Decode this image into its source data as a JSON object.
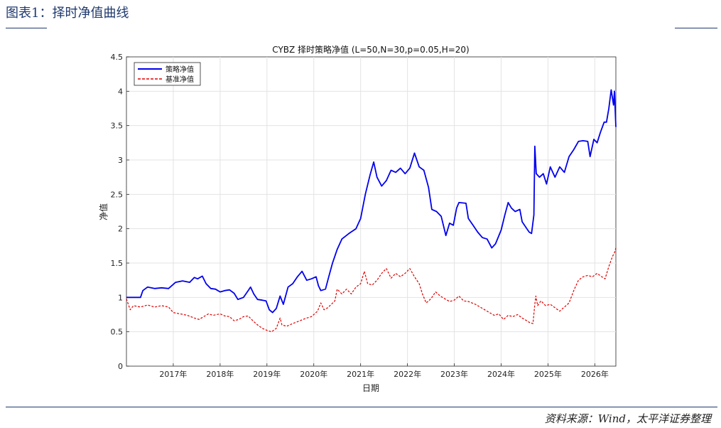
{
  "figure": {
    "title": "图表1：择时净值曲线",
    "source": "资料来源：Wind，太平洋证券整理"
  },
  "colors": {
    "strategy": "#0000ee",
    "benchmark": "#e00000",
    "header_rule": "#1f3a6e"
  },
  "chart_data": {
    "type": "line",
    "title": "CYBZ 择时策略净值 (L=50,N=30,p=0.05,H=20)",
    "xlabel": "日期",
    "ylabel": "净值",
    "xlim": [
      2016.0,
      2026.45
    ],
    "ylim": [
      0,
      4.5
    ],
    "yticks": [
      0,
      0.5,
      1,
      1.5,
      2,
      2.5,
      3,
      3.5,
      4,
      4.5
    ],
    "ytick_labels": [
      "0",
      "0.5",
      "1",
      "1.5",
      "2",
      "2.5",
      "3",
      "3.5",
      "4",
      "4.5"
    ],
    "xticks": [
      2017,
      2018,
      2019,
      2020,
      2021,
      2022,
      2023,
      2024,
      2025,
      2026
    ],
    "xtick_labels": [
      "2017年",
      "2018年",
      "2019年",
      "2020年",
      "2021年",
      "2022年",
      "2023年",
      "2024年",
      "2025年",
      "2026年"
    ],
    "grid": true,
    "legend_position": "top-left",
    "series": [
      {
        "name": "策略净值",
        "style": "solid",
        "points": [
          [
            2016.0,
            1.0
          ],
          [
            2016.3,
            1.0
          ],
          [
            2016.35,
            1.1
          ],
          [
            2016.45,
            1.15
          ],
          [
            2016.6,
            1.13
          ],
          [
            2016.75,
            1.14
          ],
          [
            2016.9,
            1.13
          ],
          [
            2017.05,
            1.22
          ],
          [
            2017.2,
            1.24
          ],
          [
            2017.35,
            1.22
          ],
          [
            2017.45,
            1.29
          ],
          [
            2017.52,
            1.27
          ],
          [
            2017.62,
            1.31
          ],
          [
            2017.7,
            1.2
          ],
          [
            2017.8,
            1.13
          ],
          [
            2017.9,
            1.12
          ],
          [
            2018.0,
            1.08
          ],
          [
            2018.1,
            1.1
          ],
          [
            2018.2,
            1.11
          ],
          [
            2018.3,
            1.06
          ],
          [
            2018.38,
            0.97
          ],
          [
            2018.5,
            1.0
          ],
          [
            2018.6,
            1.1
          ],
          [
            2018.65,
            1.15
          ],
          [
            2018.72,
            1.05
          ],
          [
            2018.8,
            0.97
          ],
          [
            2018.9,
            0.96
          ],
          [
            2018.98,
            0.95
          ],
          [
            2019.05,
            0.82
          ],
          [
            2019.12,
            0.78
          ],
          [
            2019.2,
            0.84
          ],
          [
            2019.28,
            1.02
          ],
          [
            2019.35,
            0.9
          ],
          [
            2019.45,
            1.15
          ],
          [
            2019.55,
            1.2
          ],
          [
            2019.65,
            1.3
          ],
          [
            2019.75,
            1.38
          ],
          [
            2019.85,
            1.25
          ],
          [
            2019.95,
            1.27
          ],
          [
            2020.05,
            1.3
          ],
          [
            2020.1,
            1.17
          ],
          [
            2020.15,
            1.1
          ],
          [
            2020.25,
            1.12
          ],
          [
            2020.32,
            1.3
          ],
          [
            2020.4,
            1.5
          ],
          [
            2020.5,
            1.7
          ],
          [
            2020.6,
            1.85
          ],
          [
            2020.75,
            1.93
          ],
          [
            2020.9,
            2.0
          ],
          [
            2021.0,
            2.15
          ],
          [
            2021.1,
            2.5
          ],
          [
            2021.2,
            2.78
          ],
          [
            2021.28,
            2.97
          ],
          [
            2021.35,
            2.75
          ],
          [
            2021.45,
            2.62
          ],
          [
            2021.55,
            2.7
          ],
          [
            2021.65,
            2.85
          ],
          [
            2021.75,
            2.82
          ],
          [
            2021.85,
            2.88
          ],
          [
            2021.95,
            2.8
          ],
          [
            2022.05,
            2.88
          ],
          [
            2022.15,
            3.1
          ],
          [
            2022.25,
            2.9
          ],
          [
            2022.35,
            2.85
          ],
          [
            2022.45,
            2.6
          ],
          [
            2022.52,
            2.28
          ],
          [
            2022.62,
            2.25
          ],
          [
            2022.72,
            2.18
          ],
          [
            2022.82,
            1.9
          ],
          [
            2022.9,
            2.08
          ],
          [
            2022.98,
            2.05
          ],
          [
            2023.05,
            2.3
          ],
          [
            2023.1,
            2.38
          ],
          [
            2023.25,
            2.37
          ],
          [
            2023.3,
            2.15
          ],
          [
            2023.4,
            2.05
          ],
          [
            2023.5,
            1.95
          ],
          [
            2023.6,
            1.87
          ],
          [
            2023.7,
            1.85
          ],
          [
            2023.8,
            1.72
          ],
          [
            2023.88,
            1.78
          ],
          [
            2024.0,
            1.98
          ],
          [
            2024.08,
            2.2
          ],
          [
            2024.15,
            2.38
          ],
          [
            2024.22,
            2.3
          ],
          [
            2024.3,
            2.25
          ],
          [
            2024.4,
            2.28
          ],
          [
            2024.45,
            2.1
          ],
          [
            2024.55,
            2.0
          ],
          [
            2024.6,
            1.95
          ],
          [
            2024.65,
            1.93
          ],
          [
            2024.7,
            2.2
          ],
          [
            2024.72,
            3.2
          ],
          [
            2024.75,
            2.8
          ],
          [
            2024.82,
            2.75
          ],
          [
            2024.9,
            2.8
          ],
          [
            2024.97,
            2.65
          ],
          [
            2025.05,
            2.9
          ],
          [
            2025.15,
            2.75
          ],
          [
            2025.25,
            2.9
          ],
          [
            2025.35,
            2.82
          ],
          [
            2025.45,
            3.05
          ],
          [
            2025.55,
            3.15
          ],
          [
            2025.65,
            3.27
          ],
          [
            2025.75,
            3.28
          ],
          [
            2025.85,
            3.27
          ],
          [
            2025.9,
            3.05
          ],
          [
            2025.98,
            3.3
          ],
          [
            2026.05,
            3.25
          ],
          [
            2026.12,
            3.4
          ],
          [
            2026.2,
            3.55
          ],
          [
            2026.25,
            3.55
          ],
          [
            2026.3,
            3.75
          ],
          [
            2026.35,
            4.02
          ],
          [
            2026.4,
            3.8
          ],
          [
            2026.42,
            4.0
          ],
          [
            2026.45,
            3.48
          ]
        ]
      },
      {
        "name": "基准净值",
        "style": "dashed",
        "points": [
          [
            2016.0,
            0.98
          ],
          [
            2016.08,
            0.82
          ],
          [
            2016.15,
            0.88
          ],
          [
            2016.3,
            0.86
          ],
          [
            2016.45,
            0.89
          ],
          [
            2016.6,
            0.86
          ],
          [
            2016.75,
            0.88
          ],
          [
            2016.9,
            0.86
          ],
          [
            2017.0,
            0.78
          ],
          [
            2017.15,
            0.76
          ],
          [
            2017.3,
            0.74
          ],
          [
            2017.45,
            0.7
          ],
          [
            2017.55,
            0.68
          ],
          [
            2017.65,
            0.72
          ],
          [
            2017.75,
            0.76
          ],
          [
            2017.85,
            0.74
          ],
          [
            2018.0,
            0.76
          ],
          [
            2018.1,
            0.73
          ],
          [
            2018.2,
            0.72
          ],
          [
            2018.3,
            0.66
          ],
          [
            2018.4,
            0.68
          ],
          [
            2018.5,
            0.72
          ],
          [
            2018.6,
            0.73
          ],
          [
            2018.7,
            0.66
          ],
          [
            2018.8,
            0.6
          ],
          [
            2018.9,
            0.55
          ],
          [
            2019.0,
            0.52
          ],
          [
            2019.1,
            0.5
          ],
          [
            2019.2,
            0.55
          ],
          [
            2019.28,
            0.7
          ],
          [
            2019.32,
            0.6
          ],
          [
            2019.42,
            0.58
          ],
          [
            2019.55,
            0.62
          ],
          [
            2019.7,
            0.66
          ],
          [
            2019.85,
            0.7
          ],
          [
            2019.95,
            0.72
          ],
          [
            2020.08,
            0.8
          ],
          [
            2020.15,
            0.92
          ],
          [
            2020.22,
            0.82
          ],
          [
            2020.3,
            0.85
          ],
          [
            2020.45,
            0.95
          ],
          [
            2020.5,
            1.12
          ],
          [
            2020.6,
            1.05
          ],
          [
            2020.7,
            1.12
          ],
          [
            2020.8,
            1.05
          ],
          [
            2020.9,
            1.15
          ],
          [
            2021.0,
            1.2
          ],
          [
            2021.08,
            1.38
          ],
          [
            2021.15,
            1.2
          ],
          [
            2021.25,
            1.18
          ],
          [
            2021.35,
            1.25
          ],
          [
            2021.45,
            1.35
          ],
          [
            2021.55,
            1.42
          ],
          [
            2021.65,
            1.28
          ],
          [
            2021.75,
            1.35
          ],
          [
            2021.85,
            1.3
          ],
          [
            2021.95,
            1.35
          ],
          [
            2022.05,
            1.42
          ],
          [
            2022.15,
            1.3
          ],
          [
            2022.25,
            1.2
          ],
          [
            2022.32,
            1.05
          ],
          [
            2022.4,
            0.92
          ],
          [
            2022.5,
            0.98
          ],
          [
            2022.6,
            1.08
          ],
          [
            2022.7,
            1.02
          ],
          [
            2022.8,
            0.98
          ],
          [
            2022.9,
            0.94
          ],
          [
            2023.0,
            0.96
          ],
          [
            2023.1,
            1.02
          ],
          [
            2023.2,
            0.95
          ],
          [
            2023.3,
            0.94
          ],
          [
            2023.45,
            0.9
          ],
          [
            2023.6,
            0.84
          ],
          [
            2023.75,
            0.78
          ],
          [
            2023.85,
            0.74
          ],
          [
            2023.95,
            0.76
          ],
          [
            2024.05,
            0.68
          ],
          [
            2024.15,
            0.74
          ],
          [
            2024.25,
            0.72
          ],
          [
            2024.35,
            0.75
          ],
          [
            2024.45,
            0.7
          ],
          [
            2024.55,
            0.66
          ],
          [
            2024.62,
            0.63
          ],
          [
            2024.68,
            0.62
          ],
          [
            2024.72,
            0.9
          ],
          [
            2024.74,
            1.02
          ],
          [
            2024.78,
            0.88
          ],
          [
            2024.85,
            0.95
          ],
          [
            2024.95,
            0.88
          ],
          [
            2025.05,
            0.9
          ],
          [
            2025.15,
            0.85
          ],
          [
            2025.25,
            0.8
          ],
          [
            2025.35,
            0.86
          ],
          [
            2025.45,
            0.92
          ],
          [
            2025.55,
            1.1
          ],
          [
            2025.65,
            1.25
          ],
          [
            2025.75,
            1.3
          ],
          [
            2025.85,
            1.32
          ],
          [
            2025.95,
            1.3
          ],
          [
            2026.05,
            1.35
          ],
          [
            2026.15,
            1.3
          ],
          [
            2026.22,
            1.27
          ],
          [
            2026.3,
            1.45
          ],
          [
            2026.38,
            1.6
          ],
          [
            2026.42,
            1.65
          ],
          [
            2026.45,
            1.72
          ]
        ]
      }
    ]
  }
}
